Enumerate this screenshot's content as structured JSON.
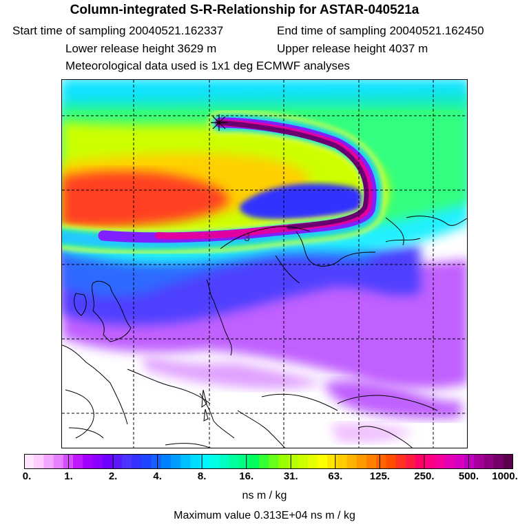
{
  "header": {
    "title": "Column-integrated S-R-Relationship for ASTAR-040521a",
    "start_time": "Start time of sampling 20040521.162337",
    "end_time": "End time of sampling 20040521.162450",
    "lower_height": "Lower release height 3629 m",
    "upper_height": "Upper release height 4037 m",
    "met_data": "Meteorological data used is 1x1 deg ECMWF analyses"
  },
  "map": {
    "contour_label": "3",
    "release_marker": "star-marker"
  },
  "colorbar": {
    "tick_labels": [
      "0.",
      "1.",
      "2.",
      "4.",
      "8.",
      "16.",
      "31.",
      "63.",
      "125.",
      "250.",
      "500.",
      "1000."
    ],
    "colors": [
      "#ffe6ff",
      "#ffccff",
      "#f2a6ff",
      "#e680ff",
      "#d64dff",
      "#bf1aff",
      "#a300ff",
      "#8c00ff",
      "#6f00ff",
      "#5a1aff",
      "#4d33ff",
      "#3333ff",
      "#2045ff",
      "#1560ff",
      "#0080ff",
      "#009dff",
      "#00bfff",
      "#00dcff",
      "#00f5ff",
      "#00ffe6",
      "#00ffc0",
      "#00ff99",
      "#00ff80",
      "#00ff5a",
      "#33ff33",
      "#66ff1a",
      "#99ff00",
      "#b3ff00",
      "#ccff00",
      "#e6ff00",
      "#ffff00",
      "#ffe600",
      "#ffcc00",
      "#ffb300",
      "#ff9900",
      "#ff8000",
      "#ff6600",
      "#ff4d00",
      "#ff3320",
      "#ff1a40",
      "#ff0066",
      "#ff0080",
      "#f5009a",
      "#e600b3",
      "#d600c0",
      "#bf00bf",
      "#a6009a",
      "#8c0080",
      "#730066",
      "#5a004d"
    ]
  },
  "unit_label": "ns m / kg",
  "max_value": "Maximum value  0.313E+04 ns m / kg"
}
